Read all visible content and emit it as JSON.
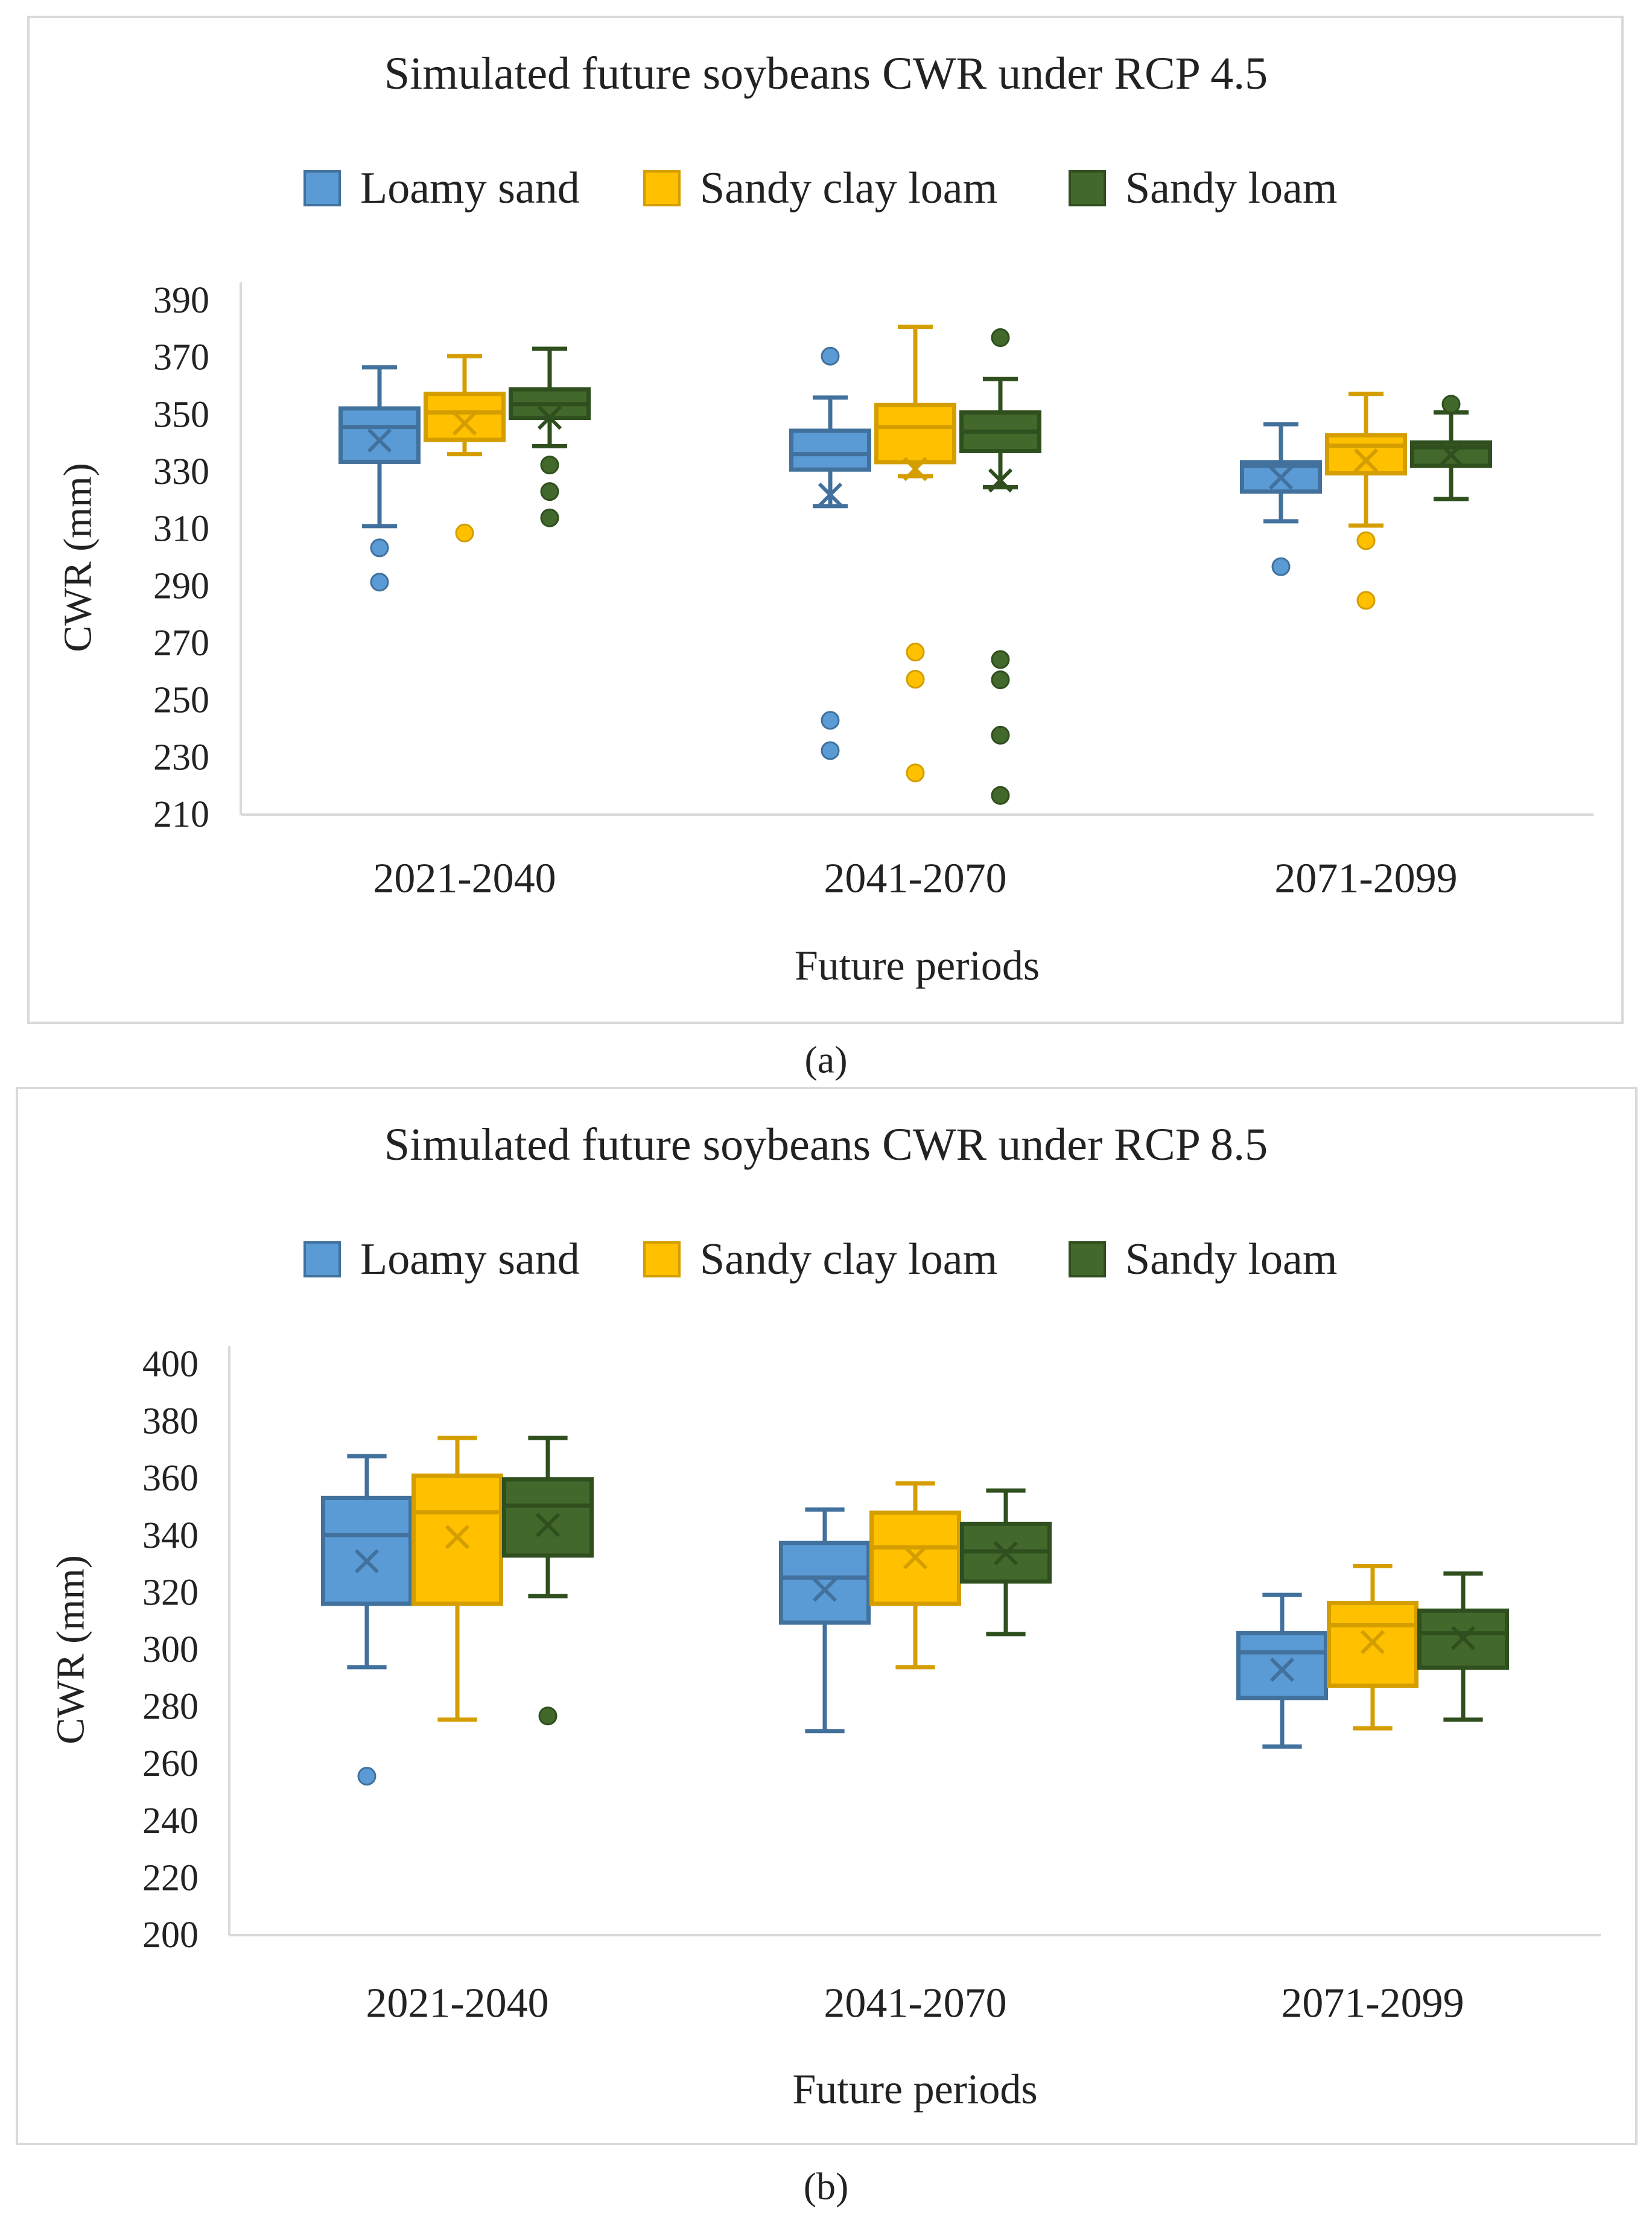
{
  "colors": {
    "Loamy sand": {
      "fill": "#5B9BD5",
      "stroke": "#41719C"
    },
    "Sandy clay loam": {
      "fill": "#FFC000",
      "stroke": "#D49E00"
    },
    "Sandy loam": {
      "fill": "#43682B",
      "stroke": "#2F4F1E"
    }
  },
  "chart_data": [
    {
      "type": "box",
      "panel_label": "(a)",
      "title": "Simulated future soybeans CWR under RCP 4.5",
      "xlabel": "Future periods",
      "ylabel": "CWR (mm)",
      "ylim": [
        210,
        390
      ],
      "yticks": [
        210,
        230,
        250,
        270,
        290,
        310,
        330,
        350,
        370,
        390
      ],
      "legend": [
        "Loamy sand",
        "Sandy clay loam",
        "Sandy loam"
      ],
      "legend_position": "top",
      "grid": false,
      "categories": [
        "2021-2040",
        "2041-2070",
        "2071-2099"
      ],
      "series": [
        {
          "name": "Loamy sand",
          "boxes": [
            {
              "min": 311,
              "q1": 333.5,
              "median": 345.7,
              "q3": 352.2,
              "max": 366.6,
              "mean": 341,
              "outliers": [
                303.4,
                291.4
              ]
            },
            {
              "min": 318,
              "q1": 330.8,
              "median": 336.2,
              "q3": 344.4,
              "max": 356,
              "mean": 322,
              "outliers": [
                370.5,
                243,
                232.4
              ]
            },
            {
              "min": 312.7,
              "q1": 323.1,
              "median": 332.1,
              "q3": 333.4,
              "max": 346.7,
              "mean": 328,
              "outliers": [
                296.8
              ]
            }
          ]
        },
        {
          "name": "Sandy clay loam",
          "boxes": [
            {
              "min": 336.2,
              "q1": 341.2,
              "median": 350.8,
              "q3": 357.3,
              "max": 370.5,
              "mean": 347,
              "outliers": [
                308.6
              ]
            },
            {
              "min": 328.5,
              "q1": 333.4,
              "median": 345.7,
              "q3": 353.4,
              "max": 380.8,
              "mean": 331,
              "outliers": [
                266.9,
                257.4,
                224.6
              ]
            },
            {
              "min": 311.2,
              "q1": 329.5,
              "median": 339.2,
              "q3": 342.8,
              "max": 357.3,
              "mean": 334,
              "outliers": [
                305.9,
                285
              ]
            }
          ]
        },
        {
          "name": "Sandy loam",
          "boxes": [
            {
              "min": 339,
              "q1": 348.9,
              "median": 353.7,
              "q3": 358.9,
              "max": 373.1,
              "mean": 349,
              "outliers": [
                332.4,
                323.1,
                313.9
              ]
            },
            {
              "min": 324.6,
              "q1": 337.3,
              "median": 344.1,
              "q3": 350.8,
              "max": 362.5,
              "mean": 327,
              "outliers": [
                377,
                264.3,
                257.2,
                237.8,
                216.7
              ]
            },
            {
              "min": 320.5,
              "q1": 332.1,
              "median": 338.6,
              "q3": 340.3,
              "max": 350.8,
              "mean": 336,
              "outliers": [
                353.7
              ]
            }
          ]
        }
      ]
    },
    {
      "type": "box",
      "panel_label": "(b)",
      "title": "Simulated future soybeans CWR under RCP 8.5",
      "xlabel": "Future periods",
      "ylabel": "CWR (mm)",
      "ylim": [
        200,
        400
      ],
      "yticks": [
        200,
        220,
        240,
        260,
        280,
        300,
        320,
        340,
        360,
        380,
        400
      ],
      "legend": [
        "Loamy sand",
        "Sandy clay loam",
        "Sandy loam"
      ],
      "legend_position": "top",
      "grid": false,
      "categories": [
        "2021-2040",
        "2041-2070",
        "2071-2099"
      ],
      "series": [
        {
          "name": "Loamy sand",
          "boxes": [
            {
              "min": 293.9,
              "q1": 316.1,
              "median": 340.2,
              "q3": 353.2,
              "max": 367.8,
              "mean": 331,
              "outliers": [
                255.7
              ]
            },
            {
              "min": 271.5,
              "q1": 309.5,
              "median": 325.3,
              "q3": 337.4,
              "max": 349.1,
              "mean": 321,
              "outliers": []
            },
            {
              "min": 266.1,
              "q1": 283.1,
              "median": 299.1,
              "q3": 305.8,
              "max": 319.2,
              "mean": 293,
              "outliers": []
            }
          ]
        },
        {
          "name": "Sandy clay loam",
          "boxes": [
            {
              "min": 275.5,
              "q1": 316.1,
              "median": 348.2,
              "q3": 361,
              "max": 374.2,
              "mean": 339.5,
              "outliers": []
            },
            {
              "min": 293.9,
              "q1": 316.1,
              "median": 335.9,
              "q3": 348,
              "max": 358.3,
              "mean": 332.4,
              "outliers": []
            },
            {
              "min": 272.5,
              "q1": 287.4,
              "median": 308.6,
              "q3": 316.4,
              "max": 329.3,
              "mean": 302.7,
              "outliers": []
            }
          ]
        },
        {
          "name": "Sandy loam",
          "boxes": [
            {
              "min": 318.8,
              "q1": 333,
              "median": 350.5,
              "q3": 359.7,
              "max": 374.2,
              "mean": 343.7,
              "outliers": [
                276.8
              ]
            },
            {
              "min": 305.5,
              "q1": 323.9,
              "median": 334.5,
              "q3": 344.1,
              "max": 355.8,
              "mean": 333.8,
              "outliers": []
            },
            {
              "min": 275.5,
              "q1": 293.7,
              "median": 305.8,
              "q3": 313.7,
              "max": 326.7,
              "mean": 304.1,
              "outliers": []
            }
          ]
        }
      ]
    }
  ]
}
